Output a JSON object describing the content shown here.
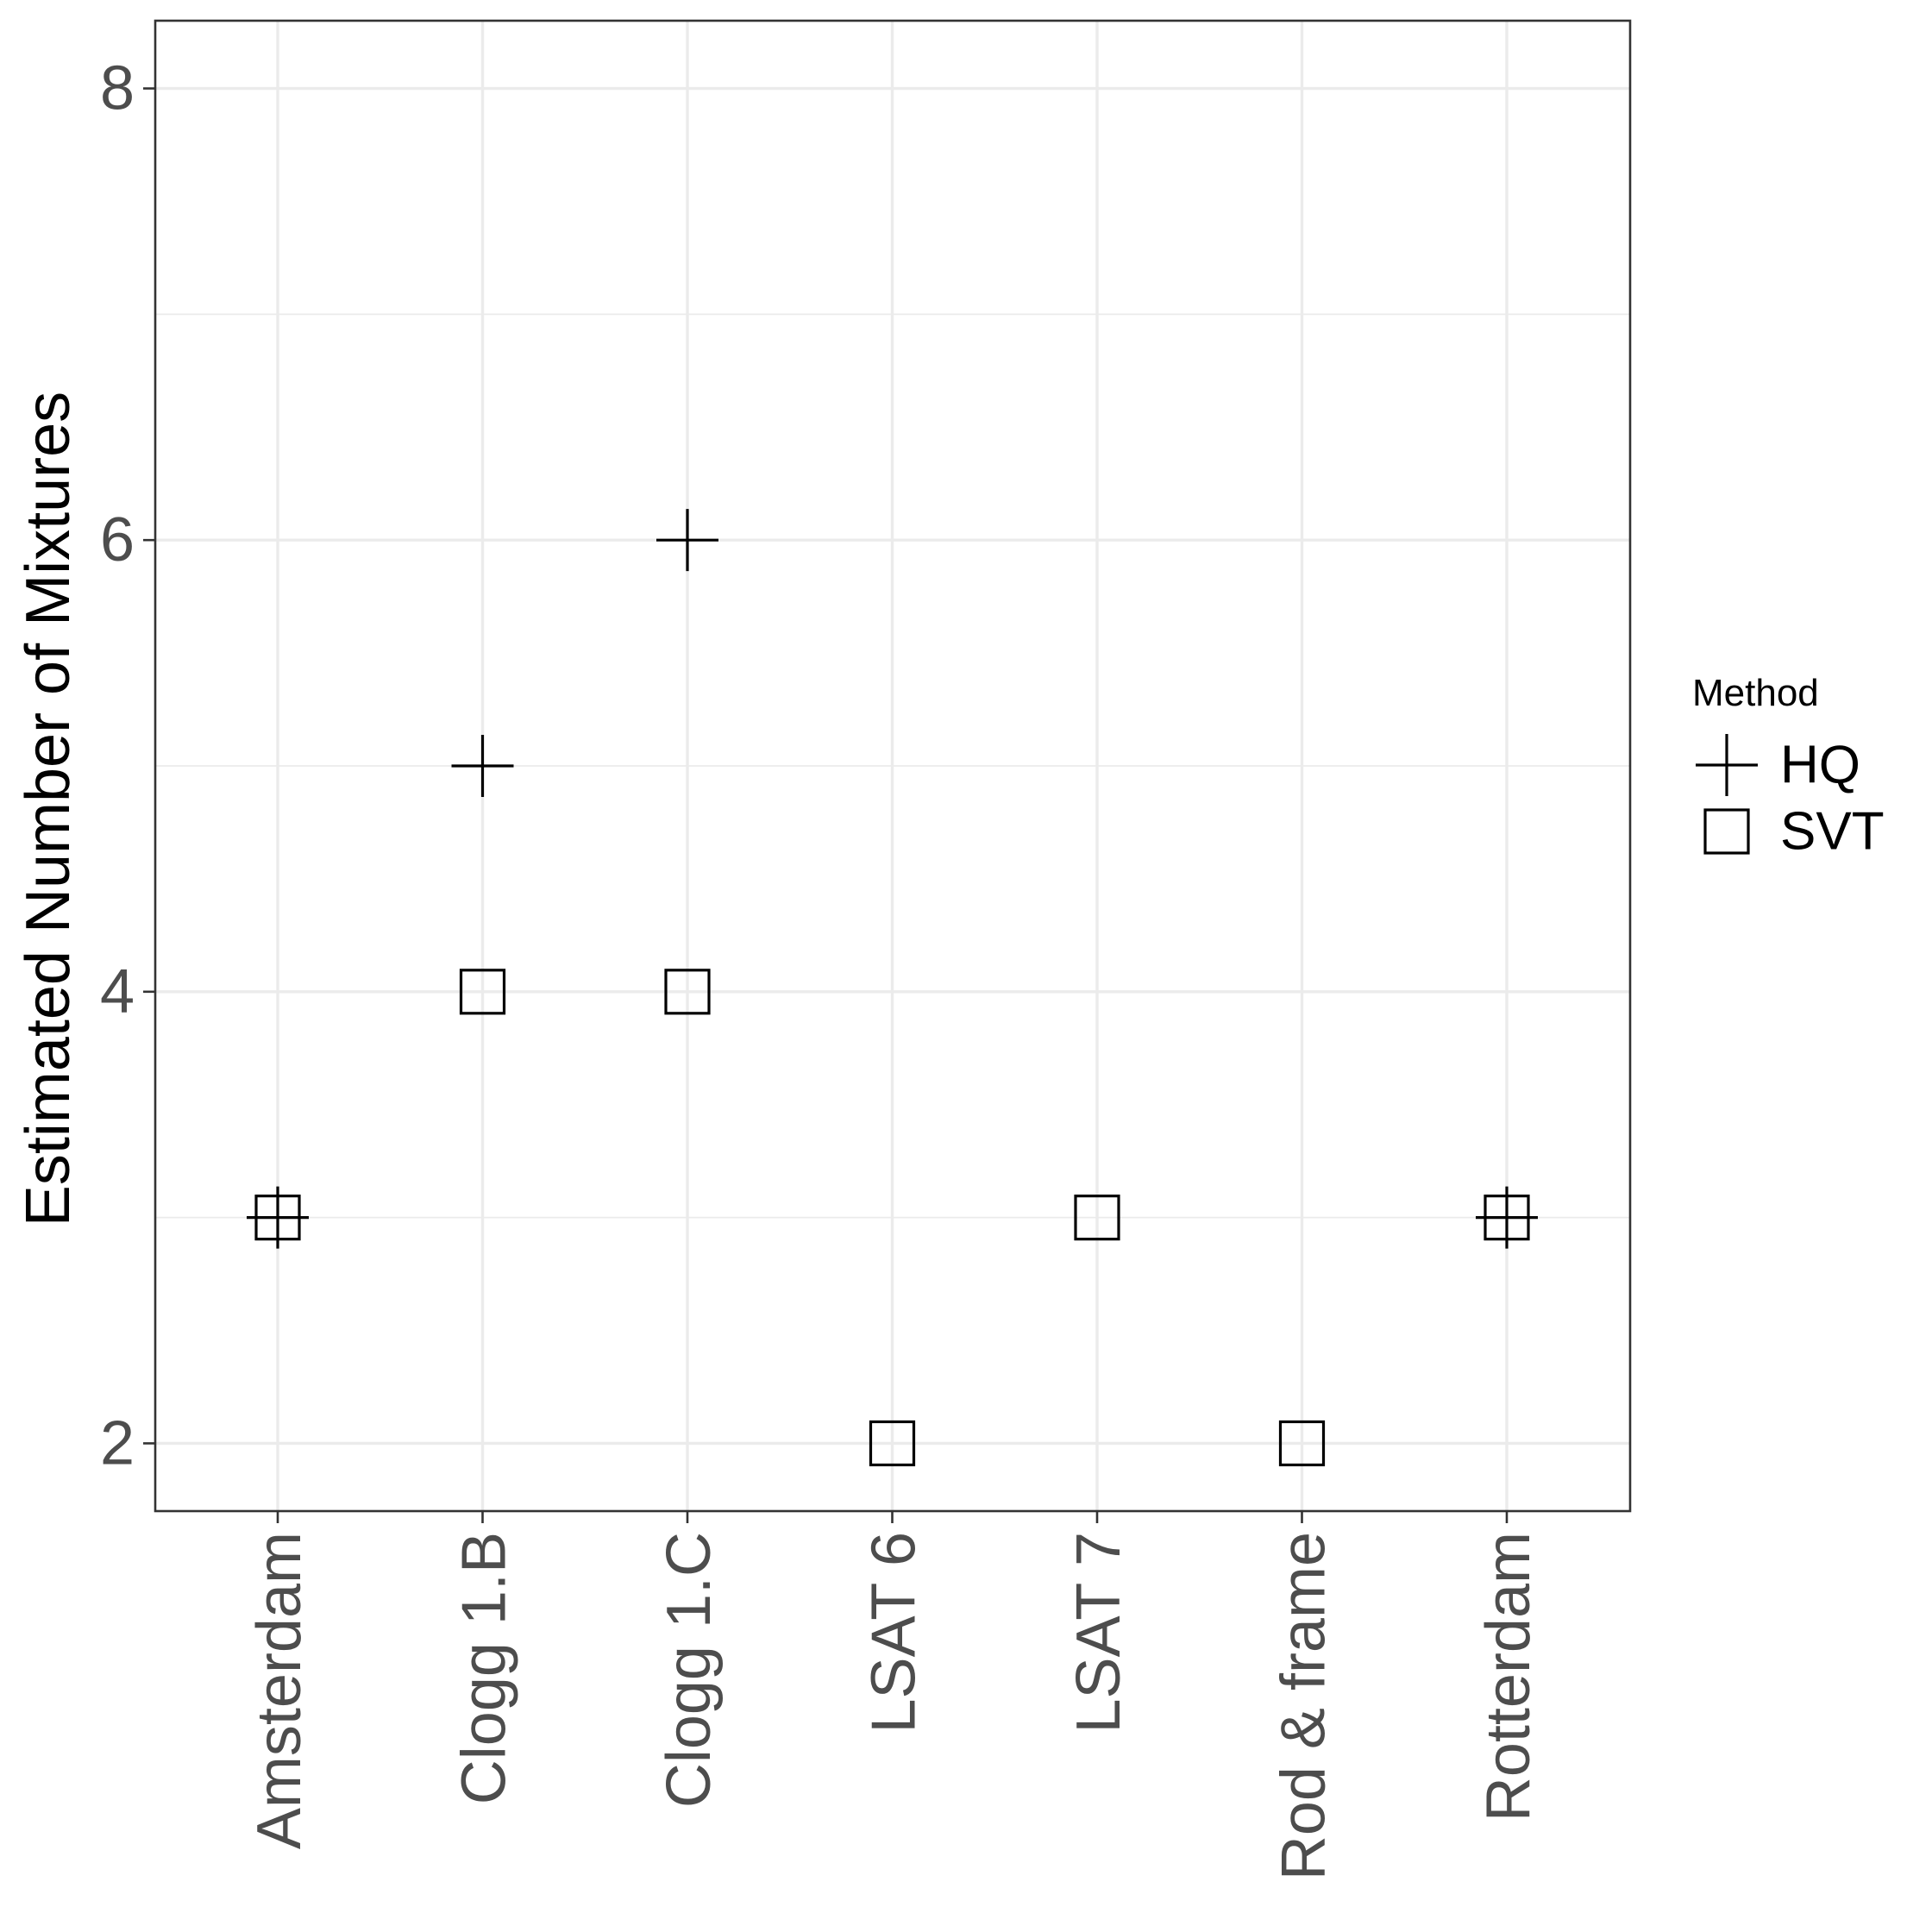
{
  "chart_data": {
    "type": "scatter",
    "title": "",
    "xlabel": "",
    "ylabel": "Estimated Number of Mixtures",
    "categories": [
      "Amsterdam",
      "Clogg 1.B",
      "Clogg 1.C",
      "LSAT 6",
      "LSAT 7",
      "Rod & frame",
      "Rotterdam"
    ],
    "ylim": [
      1.7,
      8.3
    ],
    "y_ticks": [
      2,
      4,
      6,
      8
    ],
    "y_tick_labels": [
      "2",
      "4",
      "6",
      "8"
    ],
    "grid": true,
    "legend": {
      "title": "Method",
      "position": "right",
      "entries": [
        {
          "label": "HQ",
          "shape": "plus"
        },
        {
          "label": "SVT",
          "shape": "square"
        }
      ]
    },
    "series": [
      {
        "name": "HQ",
        "shape": "plus",
        "values": [
          3,
          5,
          6,
          null,
          null,
          null,
          3
        ]
      },
      {
        "name": "SVT",
        "shape": "square",
        "values": [
          3,
          4,
          4,
          2,
          3,
          2,
          3
        ]
      }
    ]
  }
}
